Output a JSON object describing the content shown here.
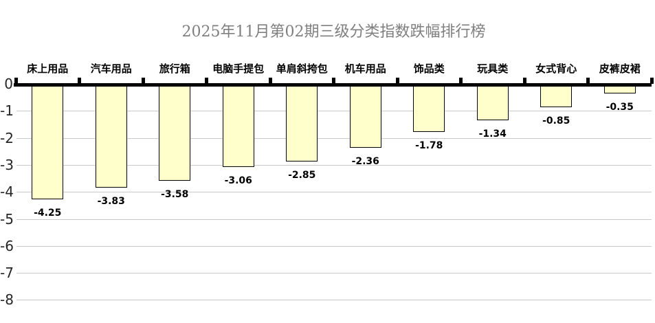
{
  "chart_data": {
    "type": "bar",
    "title": "2025年11月第02期三级分类指数跌幅排行榜",
    "categories": [
      "床上用品",
      "汽车用品",
      "旅行箱",
      "电脑手提包",
      "单肩斜挎包",
      "机车用品",
      "饰品类",
      "玩具类",
      "女式背心",
      "皮裤皮裙"
    ],
    "values": [
      -4.25,
      -3.83,
      -3.58,
      -3.06,
      -2.85,
      -2.36,
      -1.78,
      -1.34,
      -0.85,
      -0.35
    ],
    "value_labels": [
      "-4.25",
      "-3.83",
      "-3.58",
      "-3.06",
      "-2.85",
      "-2.36",
      "-1.78",
      "-1.34",
      "-0.85",
      "-0.35"
    ],
    "xlabel": "",
    "ylabel": "",
    "ylim": [
      -8,
      0
    ],
    "yticks": [
      0,
      -1,
      -2,
      -3,
      -4,
      -5,
      -6,
      -7,
      -8
    ],
    "ytick_labels": [
      "0",
      "-1",
      "-2",
      "-3",
      "-4",
      "-5",
      "-6",
      "-7",
      "-8"
    ],
    "grid": true,
    "legend": false,
    "colors": {
      "bar_fill": "#FFFFCC",
      "bar_border": "#000000",
      "gridline": "#C9C9C9",
      "axis": "#000000",
      "title": "#7F7F7F",
      "tick_label": "#262626",
      "category_label": "#000000",
      "value_label": "#000000"
    }
  }
}
